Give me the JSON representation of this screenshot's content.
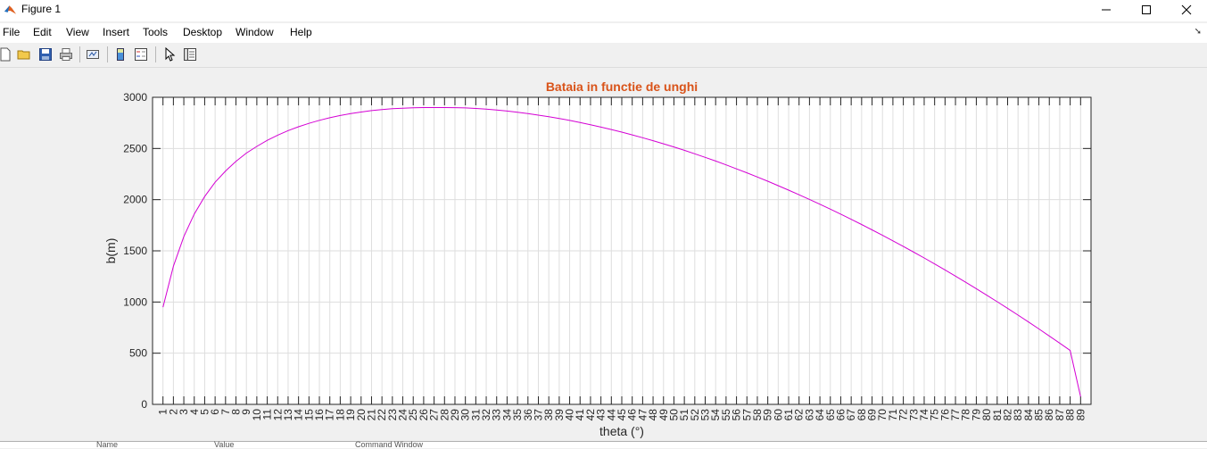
{
  "window": {
    "title": "Figure 1"
  },
  "menu": [
    "File",
    "Edit",
    "View",
    "Insert",
    "Tools",
    "Desktop",
    "Window",
    "Help"
  ],
  "toolbar": {
    "buttons": [
      "new-figure-icon",
      "open-file-icon",
      "save-icon",
      "print-icon",
      "link-plot-icon",
      "insert-colorbar-icon",
      "insert-legend-icon",
      "edit-plot-cursor-icon",
      "property-inspector-icon"
    ]
  },
  "bottom_strip": {
    "name_header": "Name",
    "value_header": "Value",
    "command_window": "Command Window"
  },
  "colors": {
    "title": "#d95319",
    "line": "#d400d4",
    "axes_bg": "#ffffff",
    "figure_bg": "#f0f0f0",
    "grid": "#dedede"
  },
  "chart_data": {
    "type": "line",
    "title": "Bataia in functie de unghi",
    "xlabel": "theta (°)",
    "ylabel": "b(m)",
    "xlim": [
      0,
      90
    ],
    "ylim": [
      0,
      3000
    ],
    "xticks": [
      1,
      2,
      3,
      4,
      5,
      6,
      7,
      8,
      9,
      10,
      11,
      12,
      13,
      14,
      15,
      16,
      17,
      18,
      19,
      20,
      21,
      22,
      23,
      24,
      25,
      26,
      27,
      28,
      29,
      30,
      31,
      32,
      33,
      34,
      35,
      36,
      37,
      38,
      39,
      40,
      41,
      42,
      43,
      44,
      45,
      46,
      47,
      48,
      49,
      50,
      51,
      52,
      53,
      54,
      55,
      56,
      57,
      58,
      59,
      60,
      61,
      62,
      63,
      64,
      65,
      66,
      67,
      68,
      69,
      70,
      71,
      72,
      73,
      74,
      75,
      76,
      77,
      78,
      79,
      80,
      81,
      82,
      83,
      84,
      85,
      86,
      87,
      88,
      89
    ],
    "yticks": [
      0,
      500,
      1000,
      1500,
      2000,
      2500,
      3000
    ],
    "grid": true,
    "series": [
      {
        "x": [
          1,
          2,
          3,
          4,
          5,
          6,
          7,
          8,
          9,
          10,
          11,
          12,
          13,
          14,
          15,
          16,
          17,
          18,
          19,
          20,
          21,
          22,
          23,
          24,
          25,
          26,
          27,
          28,
          29,
          30,
          31,
          32,
          33,
          34,
          35,
          36,
          37,
          38,
          39,
          40,
          41,
          42,
          43,
          44,
          45,
          46,
          47,
          48,
          49,
          50,
          51,
          52,
          53,
          54,
          55,
          56,
          57,
          58,
          59,
          60,
          61,
          62,
          63,
          64,
          65,
          66,
          67,
          68,
          69,
          70,
          71,
          72,
          73,
          74,
          75,
          76,
          77,
          78,
          79,
          80,
          81,
          82,
          83,
          84,
          85,
          86,
          87,
          88,
          89
        ],
        "y": [
          950,
          1350,
          1640,
          1860,
          2030,
          2170,
          2280,
          2375,
          2455,
          2520,
          2580,
          2630,
          2675,
          2712,
          2745,
          2775,
          2800,
          2822,
          2840,
          2856,
          2870,
          2880,
          2888,
          2894,
          2898,
          2900,
          2900,
          2900,
          2899,
          2896,
          2891,
          2884,
          2876,
          2866,
          2854,
          2841,
          2826,
          2810,
          2793,
          2774,
          2754,
          2732,
          2709,
          2685,
          2660,
          2633,
          2605,
          2576,
          2546,
          2515,
          2482,
          2448,
          2413,
          2377,
          2340,
          2301,
          2262,
          2221,
          2180,
          2137,
          2093,
          2048,
          2002,
          1955,
          1907,
          1858,
          1808,
          1757,
          1705,
          1652,
          1598,
          1543,
          1487,
          1430,
          1372,
          1313,
          1253,
          1192,
          1130,
          1067,
          1003,
          938,
          872,
          805,
          737,
          668,
          598,
          527,
          75
        ]
      }
    ]
  }
}
